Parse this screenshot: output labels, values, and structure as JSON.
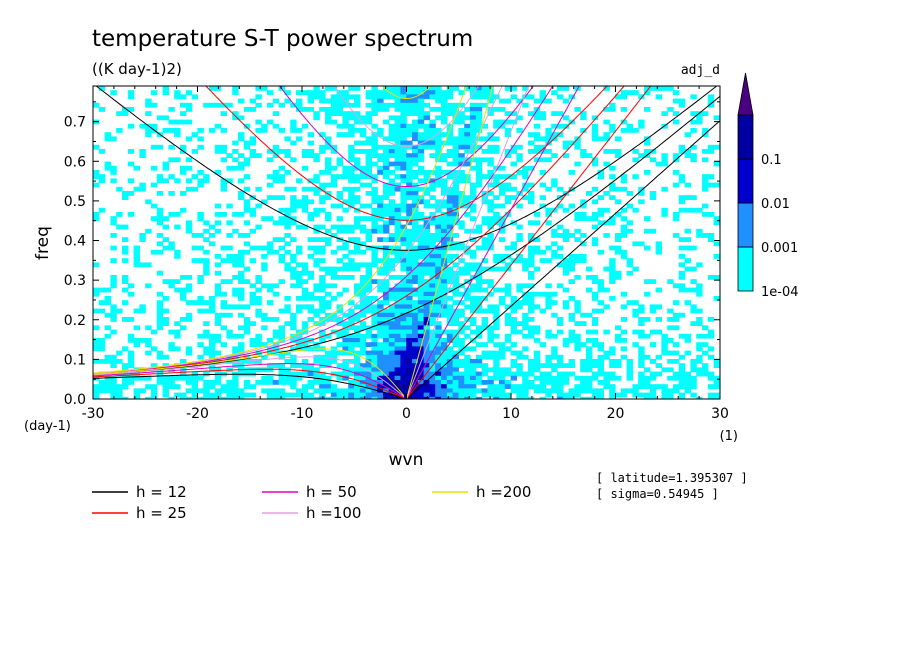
{
  "chart_data": {
    "type": "heatmap",
    "title": "temperature S-T power spectrum",
    "subtitle": "((K day-1)2)",
    "tag": "adj_d",
    "xlabel": "wvn",
    "ylabel": "freq",
    "x_units": "(1)",
    "y_units": "(day-1)",
    "xlim": [
      -30,
      30
    ],
    "ylim": [
      0,
      0.79
    ],
    "x_ticks": [
      "-30",
      "-20",
      "-10",
      "0",
      "10",
      "20",
      "30"
    ],
    "y_ticks": [
      "0.0",
      "0.1",
      "0.2",
      "0.3",
      "0.4",
      "0.5",
      "0.6",
      "0.7"
    ],
    "colorbar": {
      "levels": [
        "1e-04",
        "0.001",
        "0.01",
        "0.1"
      ],
      "colors": [
        "#00ffff",
        "#1e90ff",
        "#0000cd",
        "#0000a0",
        "#4b0082"
      ]
    },
    "curves": [
      {
        "name": "h = 12",
        "h": 12,
        "color": "#000000"
      },
      {
        "name": "h = 25",
        "h": 25,
        "color": "#ff0000"
      },
      {
        "name": "h = 50",
        "h": 50,
        "color": "#e000c0"
      },
      {
        "name": "h =100",
        "h": 100,
        "color": "#e0a0e0"
      },
      {
        "name": "h =200",
        "h": 200,
        "color": "#e8e000"
      }
    ],
    "info": [
      "[ latitude=1.395307 ]",
      "[ sigma=0.54945 ]"
    ]
  }
}
